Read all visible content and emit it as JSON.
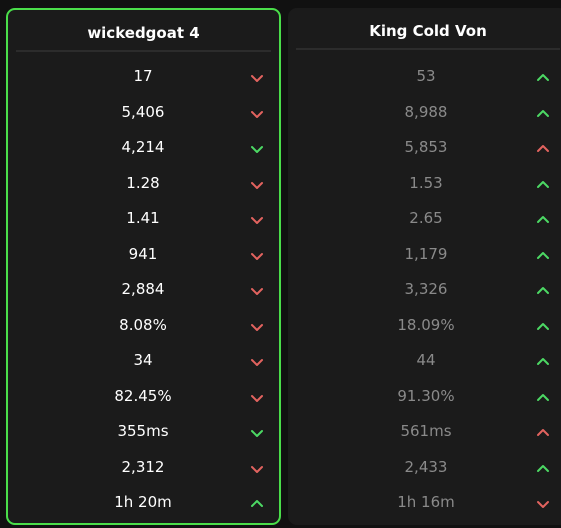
{
  "columns": [
    {
      "title": "wickedgoat 4",
      "highlighted": true,
      "value_color": "#ffffff",
      "cells": [
        {
          "value": "17",
          "arrow": "down",
          "color": "#e2635f"
        },
        {
          "value": "5,406",
          "arrow": "down",
          "color": "#e2635f"
        },
        {
          "value": "4,214",
          "arrow": "down",
          "color": "#4cd964"
        },
        {
          "value": "1.28",
          "arrow": "down",
          "color": "#e2635f"
        },
        {
          "value": "1.41",
          "arrow": "down",
          "color": "#e2635f"
        },
        {
          "value": "941",
          "arrow": "down",
          "color": "#e2635f"
        },
        {
          "value": "2,884",
          "arrow": "down",
          "color": "#e2635f"
        },
        {
          "value": "8.08%",
          "arrow": "down",
          "color": "#e2635f"
        },
        {
          "value": "34",
          "arrow": "down",
          "color": "#e2635f"
        },
        {
          "value": "82.45%",
          "arrow": "down",
          "color": "#e2635f"
        },
        {
          "value": "355ms",
          "arrow": "down",
          "color": "#4cd964"
        },
        {
          "value": "2,312",
          "arrow": "down",
          "color": "#e2635f"
        },
        {
          "value": "1h 20m",
          "arrow": "up",
          "color": "#4cd964"
        }
      ]
    },
    {
      "title": "King Cold Von",
      "highlighted": false,
      "value_color": "#8a8a8a",
      "cells": [
        {
          "value": "53",
          "arrow": "up",
          "color": "#4cd964"
        },
        {
          "value": "8,988",
          "arrow": "up",
          "color": "#4cd964"
        },
        {
          "value": "5,853",
          "arrow": "up",
          "color": "#e2635f"
        },
        {
          "value": "1.53",
          "arrow": "up",
          "color": "#4cd964"
        },
        {
          "value": "2.65",
          "arrow": "up",
          "color": "#4cd964"
        },
        {
          "value": "1,179",
          "arrow": "up",
          "color": "#4cd964"
        },
        {
          "value": "3,326",
          "arrow": "up",
          "color": "#4cd964"
        },
        {
          "value": "18.09%",
          "arrow": "up",
          "color": "#4cd964"
        },
        {
          "value": "44",
          "arrow": "up",
          "color": "#4cd964"
        },
        {
          "value": "91.30%",
          "arrow": "up",
          "color": "#4cd964"
        },
        {
          "value": "561ms",
          "arrow": "up",
          "color": "#e2635f"
        },
        {
          "value": "2,433",
          "arrow": "up",
          "color": "#4cd964"
        },
        {
          "value": "1h 16m",
          "arrow": "down",
          "color": "#e2635f"
        }
      ]
    }
  ]
}
